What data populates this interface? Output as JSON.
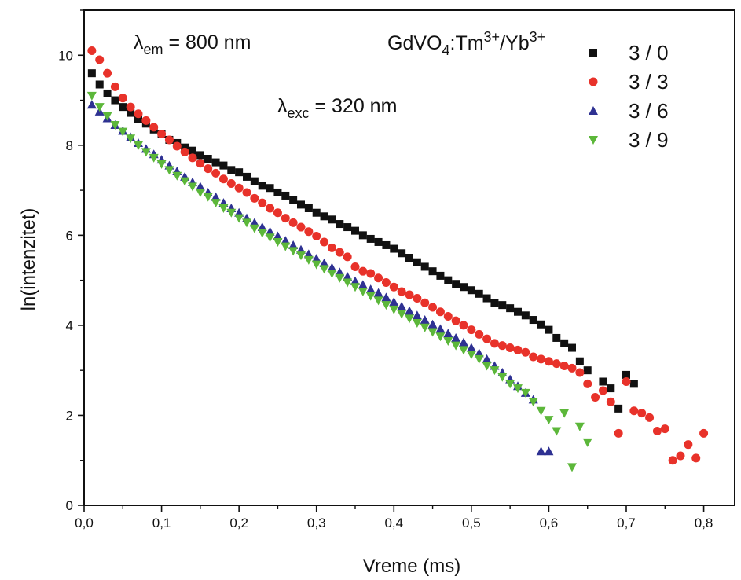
{
  "chart_data": {
    "type": "scatter",
    "title": "",
    "xlabel": "Vreme (ms)",
    "ylabel": "ln(intenzitet)",
    "xlim": [
      0.0,
      0.84
    ],
    "ylim": [
      0,
      11
    ],
    "x_ticks": [
      "0,0",
      "0,1",
      "0,2",
      "0,3",
      "0,4",
      "0,5",
      "0,6",
      "0,7",
      "0,8"
    ],
    "y_ticks": [
      "0",
      "2",
      "4",
      "6",
      "8",
      "10"
    ],
    "grid": false,
    "legend_position": "top-right",
    "legend_title": {
      "base": "GdVO",
      "sub": "4",
      "mid": ":Tm",
      "sup1": "3+",
      "slash": "/Yb",
      "sup2": "3+"
    },
    "annotations": [
      {
        "lambda": "λ",
        "sub": "em",
        "rest": " = 800 nm"
      },
      {
        "lambda": "λ",
        "sub": "exc",
        "rest": " = 320 nm"
      }
    ],
    "series": [
      {
        "name": "3 / 0",
        "marker": "square",
        "color": "#111111",
        "points": [
          [
            0.01,
            9.6
          ],
          [
            0.02,
            9.35
          ],
          [
            0.03,
            9.15
          ],
          [
            0.04,
            9.0
          ],
          [
            0.05,
            8.85
          ],
          [
            0.06,
            8.72
          ],
          [
            0.07,
            8.58
          ],
          [
            0.08,
            8.48
          ],
          [
            0.09,
            8.35
          ],
          [
            0.1,
            8.25
          ],
          [
            0.11,
            8.12
          ],
          [
            0.12,
            8.05
          ],
          [
            0.13,
            7.95
          ],
          [
            0.14,
            7.88
          ],
          [
            0.15,
            7.78
          ],
          [
            0.16,
            7.7
          ],
          [
            0.17,
            7.62
          ],
          [
            0.18,
            7.55
          ],
          [
            0.19,
            7.45
          ],
          [
            0.2,
            7.4
          ],
          [
            0.21,
            7.3
          ],
          [
            0.22,
            7.2
          ],
          [
            0.23,
            7.1
          ],
          [
            0.24,
            7.05
          ],
          [
            0.25,
            6.95
          ],
          [
            0.26,
            6.88
          ],
          [
            0.27,
            6.78
          ],
          [
            0.28,
            6.68
          ],
          [
            0.29,
            6.6
          ],
          [
            0.3,
            6.5
          ],
          [
            0.31,
            6.42
          ],
          [
            0.32,
            6.35
          ],
          [
            0.33,
            6.25
          ],
          [
            0.34,
            6.18
          ],
          [
            0.35,
            6.1
          ],
          [
            0.36,
            6.0
          ],
          [
            0.37,
            5.92
          ],
          [
            0.38,
            5.85
          ],
          [
            0.39,
            5.78
          ],
          [
            0.4,
            5.7
          ],
          [
            0.41,
            5.6
          ],
          [
            0.42,
            5.5
          ],
          [
            0.43,
            5.4
          ],
          [
            0.44,
            5.3
          ],
          [
            0.45,
            5.2
          ],
          [
            0.46,
            5.1
          ],
          [
            0.47,
            5.0
          ],
          [
            0.48,
            4.92
          ],
          [
            0.49,
            4.85
          ],
          [
            0.5,
            4.78
          ],
          [
            0.51,
            4.7
          ],
          [
            0.52,
            4.6
          ],
          [
            0.53,
            4.5
          ],
          [
            0.54,
            4.45
          ],
          [
            0.55,
            4.38
          ],
          [
            0.56,
            4.3
          ],
          [
            0.57,
            4.22
          ],
          [
            0.58,
            4.12
          ],
          [
            0.59,
            4.02
          ],
          [
            0.6,
            3.9
          ],
          [
            0.61,
            3.72
          ],
          [
            0.62,
            3.6
          ],
          [
            0.63,
            3.5
          ],
          [
            0.64,
            3.2
          ],
          [
            0.65,
            3.0
          ],
          [
            0.67,
            2.75
          ],
          [
            0.68,
            2.6
          ],
          [
            0.69,
            2.15
          ],
          [
            0.7,
            2.9
          ],
          [
            0.71,
            2.7
          ]
        ]
      },
      {
        "name": "3 / 3",
        "marker": "circle",
        "color": "#e8322a",
        "points": [
          [
            0.01,
            10.1
          ],
          [
            0.02,
            9.9
          ],
          [
            0.03,
            9.6
          ],
          [
            0.04,
            9.3
          ],
          [
            0.05,
            9.05
          ],
          [
            0.06,
            8.85
          ],
          [
            0.07,
            8.7
          ],
          [
            0.08,
            8.55
          ],
          [
            0.09,
            8.4
          ],
          [
            0.1,
            8.25
          ],
          [
            0.11,
            8.12
          ],
          [
            0.12,
            7.98
          ],
          [
            0.13,
            7.85
          ],
          [
            0.14,
            7.72
          ],
          [
            0.15,
            7.6
          ],
          [
            0.16,
            7.48
          ],
          [
            0.17,
            7.38
          ],
          [
            0.18,
            7.25
          ],
          [
            0.19,
            7.15
          ],
          [
            0.2,
            7.05
          ],
          [
            0.21,
            6.95
          ],
          [
            0.22,
            6.82
          ],
          [
            0.23,
            6.72
          ],
          [
            0.24,
            6.6
          ],
          [
            0.25,
            6.5
          ],
          [
            0.26,
            6.38
          ],
          [
            0.27,
            6.28
          ],
          [
            0.28,
            6.18
          ],
          [
            0.29,
            6.08
          ],
          [
            0.3,
            5.98
          ],
          [
            0.31,
            5.85
          ],
          [
            0.32,
            5.72
          ],
          [
            0.33,
            5.62
          ],
          [
            0.34,
            5.52
          ],
          [
            0.35,
            5.3
          ],
          [
            0.36,
            5.2
          ],
          [
            0.37,
            5.15
          ],
          [
            0.38,
            5.05
          ],
          [
            0.39,
            4.95
          ],
          [
            0.4,
            4.85
          ],
          [
            0.41,
            4.75
          ],
          [
            0.42,
            4.68
          ],
          [
            0.43,
            4.6
          ],
          [
            0.44,
            4.5
          ],
          [
            0.45,
            4.4
          ],
          [
            0.46,
            4.3
          ],
          [
            0.47,
            4.2
          ],
          [
            0.48,
            4.1
          ],
          [
            0.49,
            4.0
          ],
          [
            0.5,
            3.9
          ],
          [
            0.51,
            3.8
          ],
          [
            0.52,
            3.7
          ],
          [
            0.53,
            3.6
          ],
          [
            0.54,
            3.55
          ],
          [
            0.55,
            3.5
          ],
          [
            0.56,
            3.45
          ],
          [
            0.57,
            3.4
          ],
          [
            0.58,
            3.3
          ],
          [
            0.59,
            3.25
          ],
          [
            0.6,
            3.2
          ],
          [
            0.61,
            3.15
          ],
          [
            0.62,
            3.1
          ],
          [
            0.63,
            3.05
          ],
          [
            0.64,
            2.95
          ],
          [
            0.65,
            2.7
          ],
          [
            0.66,
            2.4
          ],
          [
            0.67,
            2.55
          ],
          [
            0.68,
            2.3
          ],
          [
            0.69,
            1.6
          ],
          [
            0.7,
            2.75
          ],
          [
            0.71,
            2.1
          ],
          [
            0.72,
            2.05
          ],
          [
            0.73,
            1.95
          ],
          [
            0.74,
            1.65
          ],
          [
            0.75,
            1.7
          ],
          [
            0.76,
            1.0
          ],
          [
            0.77,
            1.1
          ],
          [
            0.78,
            1.35
          ],
          [
            0.79,
            1.05
          ],
          [
            0.8,
            1.6
          ]
        ]
      },
      {
        "name": "3 / 6",
        "marker": "triangle-up",
        "color": "#2e3192",
        "points": [
          [
            0.01,
            8.9
          ],
          [
            0.02,
            8.75
          ],
          [
            0.03,
            8.6
          ],
          [
            0.04,
            8.45
          ],
          [
            0.05,
            8.32
          ],
          [
            0.06,
            8.18
          ],
          [
            0.07,
            8.05
          ],
          [
            0.08,
            7.92
          ],
          [
            0.09,
            7.8
          ],
          [
            0.1,
            7.68
          ],
          [
            0.11,
            7.55
          ],
          [
            0.12,
            7.42
          ],
          [
            0.13,
            7.3
          ],
          [
            0.14,
            7.18
          ],
          [
            0.15,
            7.08
          ],
          [
            0.16,
            6.95
          ],
          [
            0.17,
            6.85
          ],
          [
            0.18,
            6.72
          ],
          [
            0.19,
            6.6
          ],
          [
            0.2,
            6.5
          ],
          [
            0.21,
            6.38
          ],
          [
            0.22,
            6.28
          ],
          [
            0.23,
            6.18
          ],
          [
            0.24,
            6.08
          ],
          [
            0.25,
            5.98
          ],
          [
            0.26,
            5.88
          ],
          [
            0.27,
            5.78
          ],
          [
            0.28,
            5.68
          ],
          [
            0.29,
            5.58
          ],
          [
            0.3,
            5.48
          ],
          [
            0.31,
            5.38
          ],
          [
            0.32,
            5.28
          ],
          [
            0.33,
            5.18
          ],
          [
            0.34,
            5.08
          ],
          [
            0.35,
            4.98
          ],
          [
            0.36,
            4.9
          ],
          [
            0.37,
            4.8
          ],
          [
            0.38,
            4.72
          ],
          [
            0.39,
            4.62
          ],
          [
            0.4,
            4.52
          ],
          [
            0.41,
            4.42
          ],
          [
            0.42,
            4.32
          ],
          [
            0.43,
            4.22
          ],
          [
            0.44,
            4.12
          ],
          [
            0.45,
            4.02
          ],
          [
            0.46,
            3.92
          ],
          [
            0.47,
            3.82
          ],
          [
            0.48,
            3.72
          ],
          [
            0.49,
            3.62
          ],
          [
            0.5,
            3.5
          ],
          [
            0.51,
            3.38
          ],
          [
            0.52,
            3.25
          ],
          [
            0.53,
            3.1
          ],
          [
            0.54,
            2.95
          ],
          [
            0.55,
            2.8
          ],
          [
            0.56,
            2.65
          ],
          [
            0.57,
            2.5
          ],
          [
            0.58,
            2.35
          ],
          [
            0.59,
            1.2
          ],
          [
            0.6,
            1.2
          ]
        ]
      },
      {
        "name": "3 / 9",
        "marker": "triangle-down",
        "color": "#5cb73a",
        "points": [
          [
            0.01,
            9.1
          ],
          [
            0.02,
            8.85
          ],
          [
            0.03,
            8.65
          ],
          [
            0.04,
            8.45
          ],
          [
            0.05,
            8.3
          ],
          [
            0.06,
            8.15
          ],
          [
            0.07,
            8.0
          ],
          [
            0.08,
            7.85
          ],
          [
            0.09,
            7.72
          ],
          [
            0.1,
            7.58
          ],
          [
            0.11,
            7.45
          ],
          [
            0.12,
            7.32
          ],
          [
            0.13,
            7.2
          ],
          [
            0.14,
            7.08
          ],
          [
            0.15,
            6.95
          ],
          [
            0.16,
            6.85
          ],
          [
            0.17,
            6.72
          ],
          [
            0.18,
            6.6
          ],
          [
            0.19,
            6.5
          ],
          [
            0.2,
            6.38
          ],
          [
            0.21,
            6.28
          ],
          [
            0.22,
            6.15
          ],
          [
            0.23,
            6.05
          ],
          [
            0.24,
            5.95
          ],
          [
            0.25,
            5.85
          ],
          [
            0.26,
            5.75
          ],
          [
            0.27,
            5.65
          ],
          [
            0.28,
            5.55
          ],
          [
            0.29,
            5.45
          ],
          [
            0.3,
            5.35
          ],
          [
            0.31,
            5.25
          ],
          [
            0.32,
            5.15
          ],
          [
            0.33,
            5.05
          ],
          [
            0.34,
            4.95
          ],
          [
            0.35,
            4.85
          ],
          [
            0.36,
            4.75
          ],
          [
            0.37,
            4.65
          ],
          [
            0.38,
            4.55
          ],
          [
            0.39,
            4.45
          ],
          [
            0.4,
            4.35
          ],
          [
            0.41,
            4.25
          ],
          [
            0.42,
            4.15
          ],
          [
            0.43,
            4.05
          ],
          [
            0.44,
            3.95
          ],
          [
            0.45,
            3.85
          ],
          [
            0.46,
            3.75
          ],
          [
            0.47,
            3.65
          ],
          [
            0.48,
            3.55
          ],
          [
            0.49,
            3.45
          ],
          [
            0.5,
            3.35
          ],
          [
            0.51,
            3.25
          ],
          [
            0.52,
            3.1
          ],
          [
            0.53,
            3.0
          ],
          [
            0.54,
            2.85
          ],
          [
            0.55,
            2.7
          ],
          [
            0.56,
            2.6
          ],
          [
            0.57,
            2.5
          ],
          [
            0.58,
            2.3
          ],
          [
            0.59,
            2.1
          ],
          [
            0.6,
            1.9
          ],
          [
            0.61,
            1.65
          ],
          [
            0.62,
            2.05
          ],
          [
            0.63,
            0.85
          ],
          [
            0.64,
            1.75
          ],
          [
            0.65,
            1.4
          ]
        ]
      }
    ]
  }
}
